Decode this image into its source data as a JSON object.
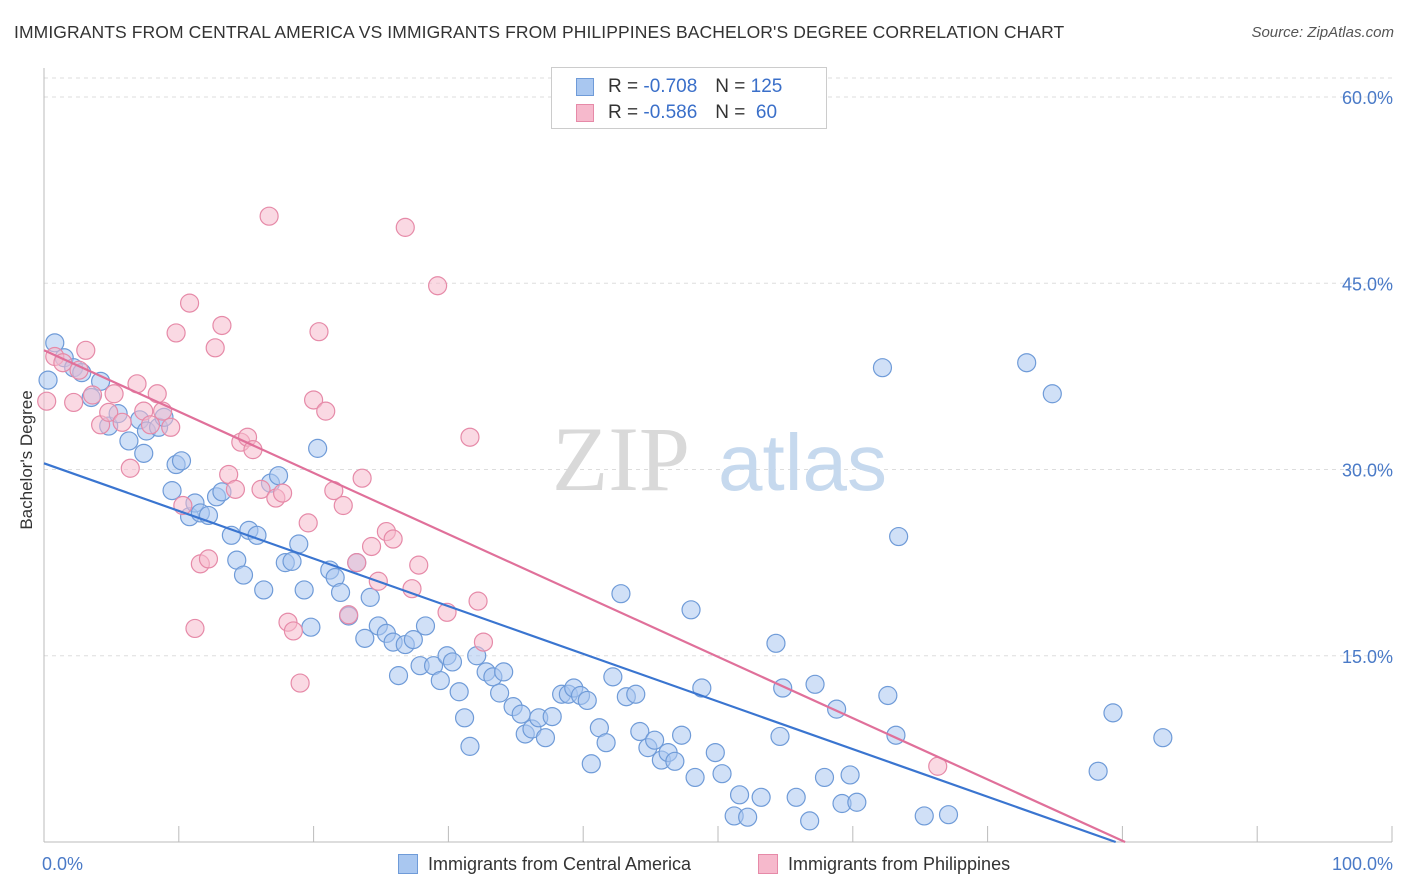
{
  "title": "IMMIGRANTS FROM CENTRAL AMERICA VS IMMIGRANTS FROM PHILIPPINES BACHELOR'S DEGREE CORRELATION CHART",
  "source": "Source: ZipAtlas.com",
  "watermark": {
    "zip": "ZIP",
    "atlas": "atlas"
  },
  "legend": {
    "rows": [
      {
        "r_label": "R = ",
        "r_value": "-0.708",
        "n_label": "N = ",
        "n_value": "125"
      },
      {
        "r_label": "R = ",
        "r_value": "-0.586",
        "n_label": "N = ",
        "n_value": " 60"
      }
    ]
  },
  "bottom_legend": [
    "Immigrants from Central America",
    "Immigrants from Philippines"
  ],
  "colors": {
    "blue_fill": "#a9c7f0",
    "blue_stroke": "#6f9bd8",
    "blue_line": "#3a75d0",
    "pink_fill": "#f6b9cc",
    "pink_stroke": "#e68aa8",
    "pink_line": "#e0709a",
    "grid": "#dddddd",
    "tick_text": "#4a7ac7"
  },
  "chart_data": {
    "type": "scatter",
    "ylabel": "Bachelor's Degree",
    "xlim": [
      0,
      100
    ],
    "ylim": [
      0,
      62
    ],
    "x_tick_labels": [
      "0.0%",
      "100.0%"
    ],
    "y_ticks": [
      15,
      30,
      45,
      60
    ],
    "y_tick_labels": [
      "15.0%",
      "30.0%",
      "45.0%",
      "60.0%"
    ],
    "grid": true,
    "series": [
      {
        "name": "Immigrants from Central America",
        "color": "blue",
        "trend": {
          "x": [
            0,
            79.5
          ],
          "y": [
            30.5,
            0
          ]
        },
        "points": [
          [
            0.3,
            37.2
          ],
          [
            0.8,
            40.2
          ],
          [
            1.5,
            39.0
          ],
          [
            2.2,
            38.2
          ],
          [
            2.8,
            37.8
          ],
          [
            3.5,
            35.8
          ],
          [
            4.2,
            37.1
          ],
          [
            4.8,
            33.5
          ],
          [
            5.5,
            34.5
          ],
          [
            6.3,
            32.3
          ],
          [
            7.1,
            34.0
          ],
          [
            7.4,
            31.3
          ],
          [
            7.6,
            33.1
          ],
          [
            8.5,
            33.4
          ],
          [
            8.9,
            34.2
          ],
          [
            9.5,
            28.3
          ],
          [
            9.8,
            30.4
          ],
          [
            10.2,
            30.7
          ],
          [
            10.8,
            26.2
          ],
          [
            11.2,
            27.3
          ],
          [
            11.6,
            26.5
          ],
          [
            12.2,
            26.3
          ],
          [
            12.8,
            27.8
          ],
          [
            13.2,
            28.2
          ],
          [
            13.9,
            24.7
          ],
          [
            14.3,
            22.7
          ],
          [
            14.8,
            21.5
          ],
          [
            15.2,
            25.1
          ],
          [
            15.8,
            24.7
          ],
          [
            16.3,
            20.3
          ],
          [
            16.8,
            28.9
          ],
          [
            17.4,
            29.5
          ],
          [
            17.9,
            22.5
          ],
          [
            18.4,
            22.6
          ],
          [
            18.9,
            24.0
          ],
          [
            19.3,
            20.3
          ],
          [
            19.8,
            17.3
          ],
          [
            20.3,
            31.7
          ],
          [
            21.2,
            21.9
          ],
          [
            21.6,
            21.3
          ],
          [
            22.0,
            20.1
          ],
          [
            22.6,
            18.2
          ],
          [
            23.2,
            22.5
          ],
          [
            23.8,
            16.4
          ],
          [
            24.2,
            19.7
          ],
          [
            24.8,
            17.4
          ],
          [
            25.4,
            16.8
          ],
          [
            25.9,
            16.1
          ],
          [
            26.3,
            13.4
          ],
          [
            26.8,
            15.9
          ],
          [
            27.4,
            16.3
          ],
          [
            27.9,
            14.2
          ],
          [
            28.3,
            17.4
          ],
          [
            28.9,
            14.2
          ],
          [
            29.4,
            13.0
          ],
          [
            29.9,
            15.0
          ],
          [
            30.3,
            14.5
          ],
          [
            30.8,
            12.1
          ],
          [
            31.2,
            10.0
          ],
          [
            31.6,
            7.7
          ],
          [
            32.1,
            15.0
          ],
          [
            32.8,
            13.7
          ],
          [
            33.3,
            13.3
          ],
          [
            34.1,
            13.7
          ],
          [
            33.8,
            12.0
          ],
          [
            34.8,
            10.9
          ],
          [
            35.4,
            10.3
          ],
          [
            35.7,
            8.7
          ],
          [
            36.2,
            9.1
          ],
          [
            36.7,
            10.0
          ],
          [
            37.2,
            8.4
          ],
          [
            37.7,
            10.1
          ],
          [
            38.4,
            11.9
          ],
          [
            38.9,
            11.9
          ],
          [
            39.3,
            12.4
          ],
          [
            39.8,
            11.8
          ],
          [
            40.3,
            11.4
          ],
          [
            40.6,
            6.3
          ],
          [
            41.2,
            9.2
          ],
          [
            41.7,
            8.0
          ],
          [
            42.2,
            13.3
          ],
          [
            42.8,
            20.0
          ],
          [
            43.2,
            11.7
          ],
          [
            43.9,
            11.9
          ],
          [
            44.2,
            8.9
          ],
          [
            44.8,
            7.6
          ],
          [
            45.3,
            8.2
          ],
          [
            45.8,
            6.6
          ],
          [
            46.3,
            7.2
          ],
          [
            46.8,
            6.5
          ],
          [
            47.3,
            8.6
          ],
          [
            48.0,
            18.7
          ],
          [
            48.3,
            5.2
          ],
          [
            48.8,
            12.4
          ],
          [
            49.8,
            7.2
          ],
          [
            50.3,
            5.5
          ],
          [
            51.2,
            2.1
          ],
          [
            51.6,
            3.8
          ],
          [
            52.2,
            2.0
          ],
          [
            53.2,
            3.6
          ],
          [
            54.3,
            16.0
          ],
          [
            54.6,
            8.5
          ],
          [
            54.8,
            12.4
          ],
          [
            55.8,
            3.6
          ],
          [
            56.8,
            1.7
          ],
          [
            57.2,
            12.7
          ],
          [
            57.9,
            5.2
          ],
          [
            58.8,
            10.7
          ],
          [
            59.2,
            3.1
          ],
          [
            59.8,
            5.4
          ],
          [
            60.3,
            3.2
          ],
          [
            62.2,
            38.2
          ],
          [
            62.6,
            11.8
          ],
          [
            63.2,
            8.6
          ],
          [
            63.4,
            24.6
          ],
          [
            65.3,
            2.1
          ],
          [
            67.1,
            2.2
          ],
          [
            72.9,
            38.6
          ],
          [
            74.8,
            36.1
          ],
          [
            78.2,
            5.7
          ],
          [
            79.3,
            10.4
          ],
          [
            83.0,
            8.4
          ]
        ]
      },
      {
        "name": "Immigrants from Philippines",
        "color": "pink",
        "trend": {
          "x": [
            0,
            80.2
          ],
          "y": [
            39.6,
            0
          ]
        },
        "points": [
          [
            0.2,
            35.5
          ],
          [
            0.8,
            39.1
          ],
          [
            1.4,
            38.6
          ],
          [
            2.2,
            35.4
          ],
          [
            2.6,
            38.0
          ],
          [
            3.1,
            39.6
          ],
          [
            3.6,
            36.0
          ],
          [
            4.2,
            33.6
          ],
          [
            4.8,
            34.6
          ],
          [
            5.2,
            36.1
          ],
          [
            5.8,
            33.8
          ],
          [
            6.4,
            30.1
          ],
          [
            6.9,
            36.9
          ],
          [
            7.4,
            34.7
          ],
          [
            7.9,
            33.6
          ],
          [
            8.4,
            36.1
          ],
          [
            8.8,
            34.7
          ],
          [
            9.4,
            33.4
          ],
          [
            9.8,
            41.0
          ],
          [
            10.3,
            27.1
          ],
          [
            10.8,
            43.4
          ],
          [
            11.2,
            17.2
          ],
          [
            11.6,
            22.4
          ],
          [
            12.2,
            22.8
          ],
          [
            12.7,
            39.8
          ],
          [
            13.2,
            41.6
          ],
          [
            13.7,
            29.6
          ],
          [
            14.2,
            28.4
          ],
          [
            14.6,
            32.2
          ],
          [
            15.1,
            32.6
          ],
          [
            15.5,
            31.6
          ],
          [
            16.1,
            28.4
          ],
          [
            16.7,
            50.4
          ],
          [
            17.2,
            27.7
          ],
          [
            17.7,
            28.1
          ],
          [
            18.1,
            17.7
          ],
          [
            18.5,
            17.0
          ],
          [
            19.0,
            12.8
          ],
          [
            19.6,
            25.7
          ],
          [
            20.0,
            35.6
          ],
          [
            20.4,
            41.1
          ],
          [
            20.9,
            34.7
          ],
          [
            21.5,
            28.3
          ],
          [
            22.2,
            27.1
          ],
          [
            22.6,
            18.3
          ],
          [
            23.2,
            22.5
          ],
          [
            23.6,
            29.3
          ],
          [
            24.3,
            23.8
          ],
          [
            24.8,
            21.0
          ],
          [
            25.4,
            25.0
          ],
          [
            25.9,
            24.4
          ],
          [
            26.8,
            49.5
          ],
          [
            27.3,
            20.4
          ],
          [
            27.8,
            22.3
          ],
          [
            29.2,
            44.8
          ],
          [
            29.9,
            18.5
          ],
          [
            31.6,
            32.6
          ],
          [
            32.2,
            19.4
          ],
          [
            32.6,
            16.1
          ],
          [
            66.3,
            6.1
          ]
        ]
      }
    ]
  }
}
